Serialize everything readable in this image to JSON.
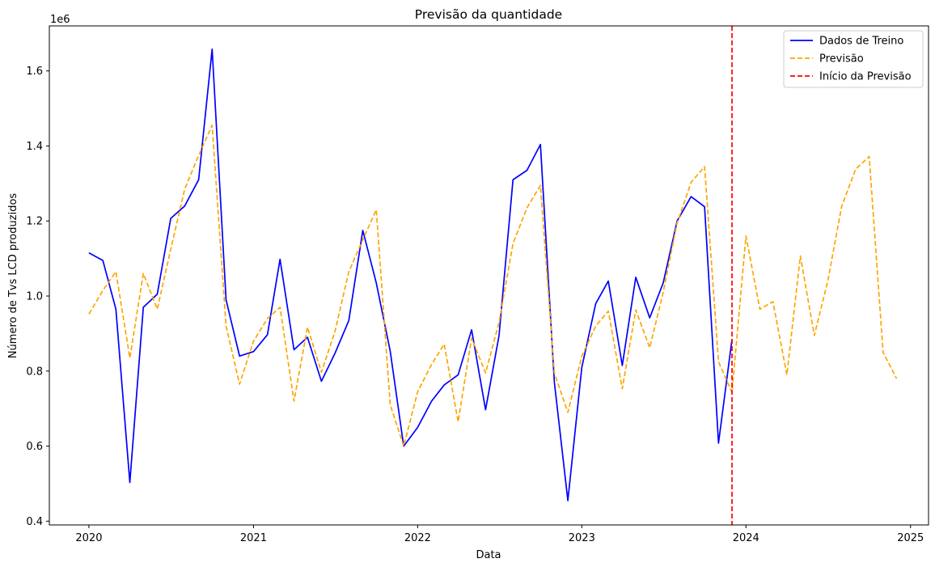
{
  "chart_data": {
    "type": "line",
    "title": "Previsão da quantidade",
    "xlabel": "Data",
    "ylabel": "Número de Tvs LCD produzidos",
    "y_offset_label": "1e6",
    "xlim": [
      "2019-10-05",
      "2025-02-10"
    ],
    "ylim": [
      0.39,
      1.72
    ],
    "x_ticks": [
      "2020-01-01",
      "2021-01-01",
      "2022-01-01",
      "2023-01-01",
      "2024-01-01",
      "2025-01-01"
    ],
    "x_tick_labels": [
      "2020",
      "2021",
      "2022",
      "2023",
      "2024",
      "2025"
    ],
    "y_ticks": [
      0.4,
      0.6,
      0.8,
      1.0,
      1.2,
      1.4,
      1.6
    ],
    "y_tick_labels": [
      "0.4",
      "0.6",
      "0.8",
      "1.0",
      "1.2",
      "1.4",
      "1.6"
    ],
    "grid": false,
    "legend_position": "top-right",
    "series": [
      {
        "name": "Dados de Treino",
        "color": "#0000ff",
        "dash": "solid",
        "x": [
          "2020-01",
          "2020-02",
          "2020-03",
          "2020-04",
          "2020-05",
          "2020-06",
          "2020-07",
          "2020-08",
          "2020-09",
          "2020-10",
          "2020-11",
          "2020-12",
          "2021-01",
          "2021-02",
          "2021-03",
          "2021-04",
          "2021-05",
          "2021-06",
          "2021-07",
          "2021-08",
          "2021-09",
          "2021-10",
          "2021-11",
          "2021-12",
          "2022-01",
          "2022-02",
          "2022-03",
          "2022-04",
          "2022-05",
          "2022-06",
          "2022-07",
          "2022-08",
          "2022-09",
          "2022-10",
          "2022-11",
          "2022-12",
          "2023-01",
          "2023-02",
          "2023-03",
          "2023-04",
          "2023-05",
          "2023-06",
          "2023-07",
          "2023-08",
          "2023-09",
          "2023-10",
          "2023-11",
          "2023-12"
        ],
        "y": [
          1.115,
          1.095,
          0.965,
          0.503,
          0.97,
          1.005,
          1.207,
          1.24,
          1.31,
          1.658,
          0.99,
          0.84,
          0.852,
          0.897,
          1.098,
          0.857,
          0.89,
          0.773,
          0.847,
          0.935,
          1.175,
          1.035,
          0.853,
          0.6,
          0.65,
          0.72,
          0.763,
          0.79,
          0.91,
          0.697,
          0.895,
          1.31,
          1.335,
          1.404,
          0.77,
          0.455,
          0.81,
          0.98,
          1.04,
          0.815,
          1.05,
          0.942,
          1.035,
          1.2,
          1.265,
          1.238,
          0.608,
          0.885
        ]
      },
      {
        "name": "Previsão",
        "color": "#ffa500",
        "dash": "dashed",
        "x": [
          "2020-01",
          "2020-02",
          "2020-03",
          "2020-04",
          "2020-05",
          "2020-06",
          "2020-07",
          "2020-08",
          "2020-09",
          "2020-10",
          "2020-11",
          "2020-12",
          "2021-01",
          "2021-02",
          "2021-03",
          "2021-04",
          "2021-05",
          "2021-06",
          "2021-07",
          "2021-08",
          "2021-09",
          "2021-10",
          "2021-11",
          "2021-12",
          "2022-01",
          "2022-02",
          "2022-03",
          "2022-04",
          "2022-05",
          "2022-06",
          "2022-07",
          "2022-08",
          "2022-09",
          "2022-10",
          "2022-11",
          "2022-12",
          "2023-01",
          "2023-02",
          "2023-03",
          "2023-04",
          "2023-05",
          "2023-06",
          "2023-07",
          "2023-08",
          "2023-09",
          "2023-10",
          "2023-11",
          "2023-12",
          "2024-01",
          "2024-02",
          "2024-03",
          "2024-04",
          "2024-05",
          "2024-06",
          "2024-07",
          "2024-08",
          "2024-09",
          "2024-10",
          "2024-11",
          "2024-12"
        ],
        "y": [
          0.952,
          1.015,
          1.065,
          0.835,
          1.06,
          0.965,
          1.125,
          1.285,
          1.375,
          1.455,
          0.92,
          0.765,
          0.88,
          0.94,
          0.97,
          0.72,
          0.917,
          0.797,
          0.905,
          1.065,
          1.15,
          1.23,
          0.71,
          0.6,
          0.745,
          0.818,
          0.872,
          0.665,
          0.888,
          0.795,
          0.93,
          1.14,
          1.235,
          1.295,
          0.795,
          0.69,
          0.84,
          0.92,
          0.96,
          0.753,
          0.963,
          0.862,
          1.01,
          1.195,
          1.303,
          1.345,
          0.825,
          0.743,
          1.16,
          0.965,
          0.985,
          0.79,
          1.107,
          0.895,
          1.04,
          1.24,
          1.338,
          1.372,
          0.85,
          0.78
        ]
      }
    ],
    "annotations": [
      {
        "name": "Início da Previsão",
        "type": "vline",
        "x": "2023-12",
        "color": "#ff0000",
        "dash": "dashed"
      }
    ]
  }
}
